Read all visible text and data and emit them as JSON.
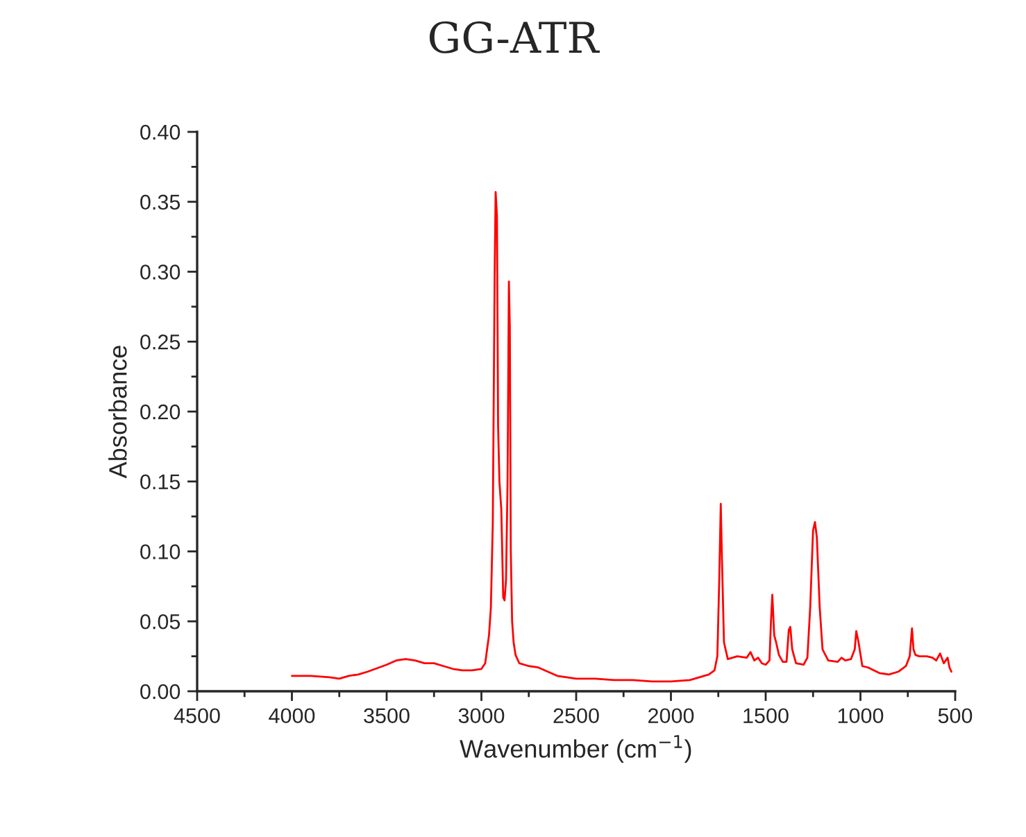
{
  "chart_data": {
    "type": "line",
    "title": "GG-ATR",
    "xlabel": "Wavenumber (cm$^{−1}$)",
    "ylabel": "Absorbance",
    "xlim": [
      4500,
      500
    ],
    "xticks": [
      4500,
      4000,
      3500,
      3000,
      2500,
      2000,
      1500,
      1000,
      500
    ],
    "ylim": [
      0,
      0.4
    ],
    "yticks": [
      {
        "value": 0,
        "label": "0.00"
      },
      {
        "value": 0.05,
        "label": "0.05"
      },
      {
        "value": 0.1,
        "label": "0.10"
      },
      {
        "value": 0.15,
        "label": "0.15"
      },
      {
        "value": 0.2,
        "label": "0.20"
      },
      {
        "value": 0.25,
        "label": "0.25"
      },
      {
        "value": 0.3,
        "label": "0.30"
      },
      {
        "value": 0.35,
        "label": "0.35"
      },
      {
        "value": 0.4,
        "label": "0.40"
      }
    ],
    "grid": false,
    "legend": false,
    "marker": "none",
    "line_style": "solid",
    "series": [
      {
        "color": "#ff0000",
        "x": [
          4000,
          3900,
          3800,
          3750,
          3700,
          3650,
          3600,
          3500,
          3450,
          3400,
          3350,
          3300,
          3250,
          3200,
          3150,
          3100,
          3050,
          3000,
          2980,
          2960,
          2950,
          2940,
          2930,
          2925,
          2918,
          2912,
          2905,
          2895,
          2885,
          2878,
          2870,
          2862,
          2855,
          2850,
          2845,
          2838,
          2830,
          2820,
          2800,
          2750,
          2700,
          2650,
          2600,
          2500,
          2400,
          2300,
          2200,
          2100,
          2000,
          1900,
          1800,
          1770,
          1755,
          1745,
          1737,
          1730,
          1720,
          1700,
          1650,
          1600,
          1580,
          1560,
          1540,
          1520,
          1500,
          1480,
          1472,
          1465,
          1455,
          1445,
          1430,
          1410,
          1390,
          1378,
          1370,
          1360,
          1340,
          1300,
          1280,
          1265,
          1250,
          1240,
          1230,
          1215,
          1200,
          1170,
          1120,
          1100,
          1080,
          1050,
          1030,
          1022,
          1010,
          990,
          960,
          900,
          850,
          800,
          760,
          740,
          728,
          720,
          710,
          690,
          650,
          620,
          600,
          580,
          560,
          540,
          530,
          520
        ],
        "values": [
          0.011,
          0.011,
          0.01,
          0.009,
          0.011,
          0.012,
          0.014,
          0.019,
          0.022,
          0.023,
          0.022,
          0.02,
          0.02,
          0.018,
          0.016,
          0.015,
          0.015,
          0.016,
          0.02,
          0.04,
          0.06,
          0.12,
          0.3,
          0.357,
          0.34,
          0.19,
          0.15,
          0.13,
          0.067,
          0.065,
          0.08,
          0.15,
          0.293,
          0.26,
          0.1,
          0.05,
          0.035,
          0.026,
          0.02,
          0.018,
          0.017,
          0.014,
          0.011,
          0.009,
          0.009,
          0.008,
          0.008,
          0.007,
          0.007,
          0.008,
          0.012,
          0.015,
          0.025,
          0.08,
          0.134,
          0.09,
          0.035,
          0.023,
          0.025,
          0.024,
          0.028,
          0.022,
          0.024,
          0.02,
          0.019,
          0.022,
          0.05,
          0.069,
          0.04,
          0.035,
          0.026,
          0.021,
          0.021,
          0.044,
          0.046,
          0.03,
          0.02,
          0.019,
          0.024,
          0.06,
          0.115,
          0.121,
          0.11,
          0.06,
          0.03,
          0.022,
          0.021,
          0.024,
          0.022,
          0.023,
          0.03,
          0.043,
          0.035,
          0.018,
          0.017,
          0.013,
          0.012,
          0.014,
          0.018,
          0.025,
          0.045,
          0.03,
          0.026,
          0.025,
          0.025,
          0.024,
          0.022,
          0.027,
          0.02,
          0.024,
          0.017,
          0.014
        ]
      }
    ]
  }
}
